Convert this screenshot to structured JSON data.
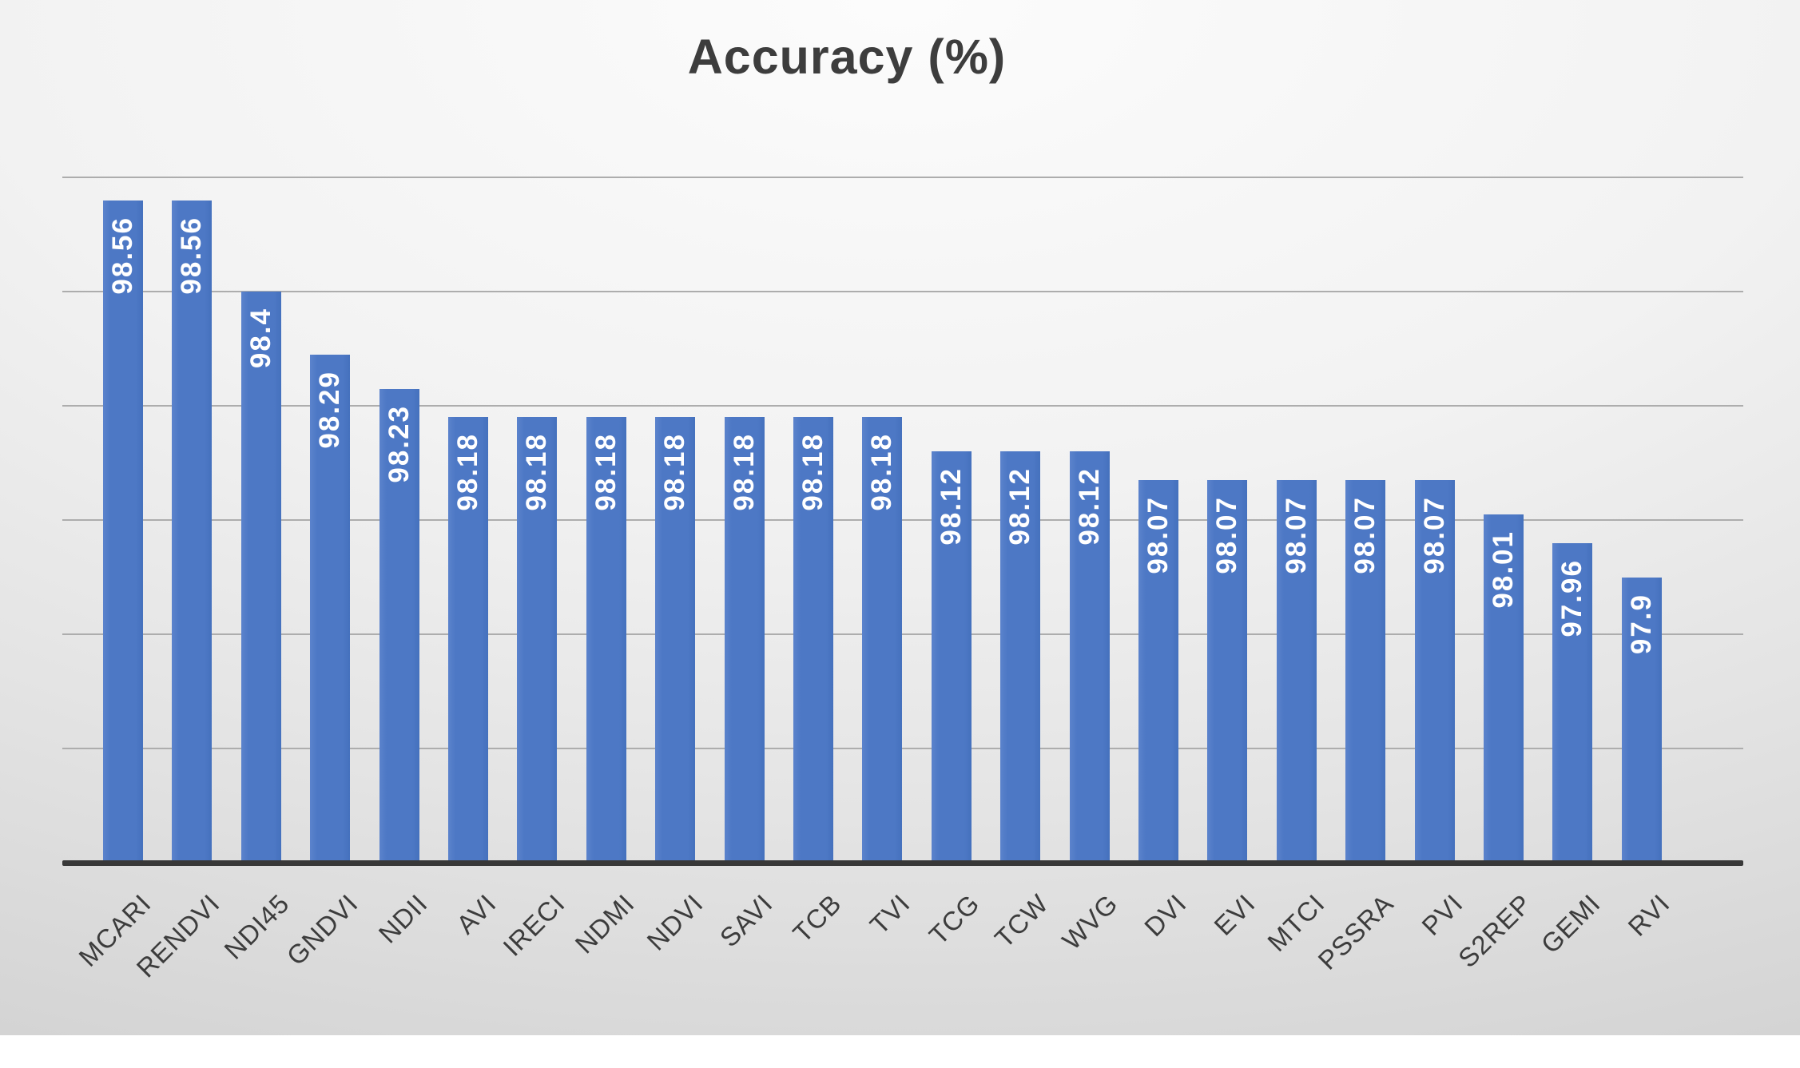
{
  "chart_data": {
    "type": "bar",
    "title": "Accuracy (%)",
    "categories": [
      "MCARI",
      "RENDVI",
      "NDI45",
      "GNDVI",
      "NDII",
      "AVI",
      "IRECI",
      "NDMI",
      "NDVI",
      "SAVI",
      "TCB",
      "TVI",
      "TCG",
      "TCW",
      "WVG",
      "DVI",
      "EVI",
      "MTCI",
      "PSSRA",
      "PVI",
      "S2REP",
      "GEMI",
      "RVI"
    ],
    "values": [
      98.56,
      98.56,
      98.4,
      98.29,
      98.23,
      98.18,
      98.18,
      98.18,
      98.18,
      98.18,
      98.18,
      98.18,
      98.12,
      98.12,
      98.12,
      98.07,
      98.07,
      98.07,
      98.07,
      98.07,
      98.01,
      97.96,
      97.9
    ],
    "xlabel": "",
    "ylabel": "",
    "ylim": [
      97.4,
      98.6
    ],
    "gridline_step": 0.2,
    "grid": true,
    "y_tick_labels_visible": false,
    "legend_position": "none",
    "data_labels_position": "inside-end-vertical",
    "category_label_rotation_deg": 45
  },
  "style": {
    "bar_color": "#4d78c5",
    "data_label_color": "#ffffff",
    "title_color": "#3d3d3d",
    "axis_label_color": "#3c3c3c",
    "gridline_color": "#adadad",
    "baseline_color": "#383838",
    "frame_color": "#0b0b0b",
    "background_top": "#fcfcfc",
    "background_bottom": "#c9c9c9"
  }
}
